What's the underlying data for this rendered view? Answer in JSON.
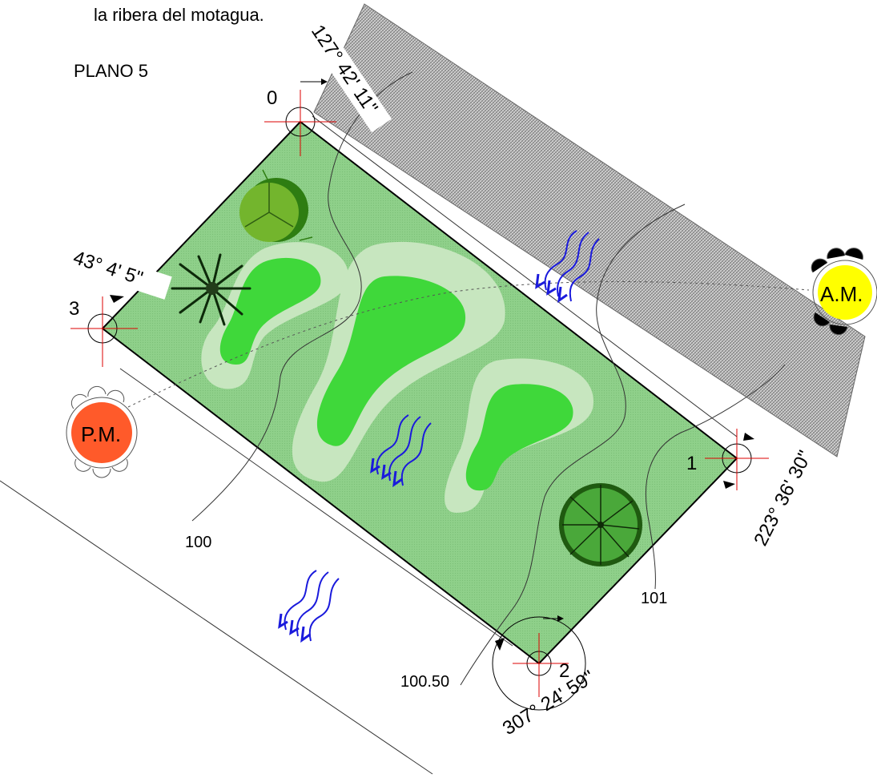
{
  "header": {
    "caption": "la ribera del motagua.",
    "plan_title": "PLANO 5"
  },
  "vertices": {
    "v0": "0",
    "v1": "1",
    "v2": "2",
    "v3": "3"
  },
  "angles": {
    "a0": "127° 42' 11\"",
    "a1": "223° 36' 30\"",
    "a2": "307° 24' 59\"",
    "a3": "43° 4' 5\""
  },
  "sun": {
    "am": "A.M.",
    "pm": "P.M."
  },
  "contours": {
    "c100": "100",
    "c101": "101",
    "c10050": "100.50"
  },
  "colors": {
    "lot": "#8fd08a",
    "mound_light": "#c7e6bf",
    "mound_core": "#3fd83a",
    "hatch": "#8a8a8a",
    "sun_am": "#ffff00",
    "sun_pm": "#ff5a2a",
    "wind_arrow": "#1a1adc",
    "tree": "#2f8a1e"
  },
  "icons": [
    "wind-arrow-icon",
    "tree-icon",
    "palm-tree-icon",
    "round-tree-icon",
    "sun-icon"
  ]
}
